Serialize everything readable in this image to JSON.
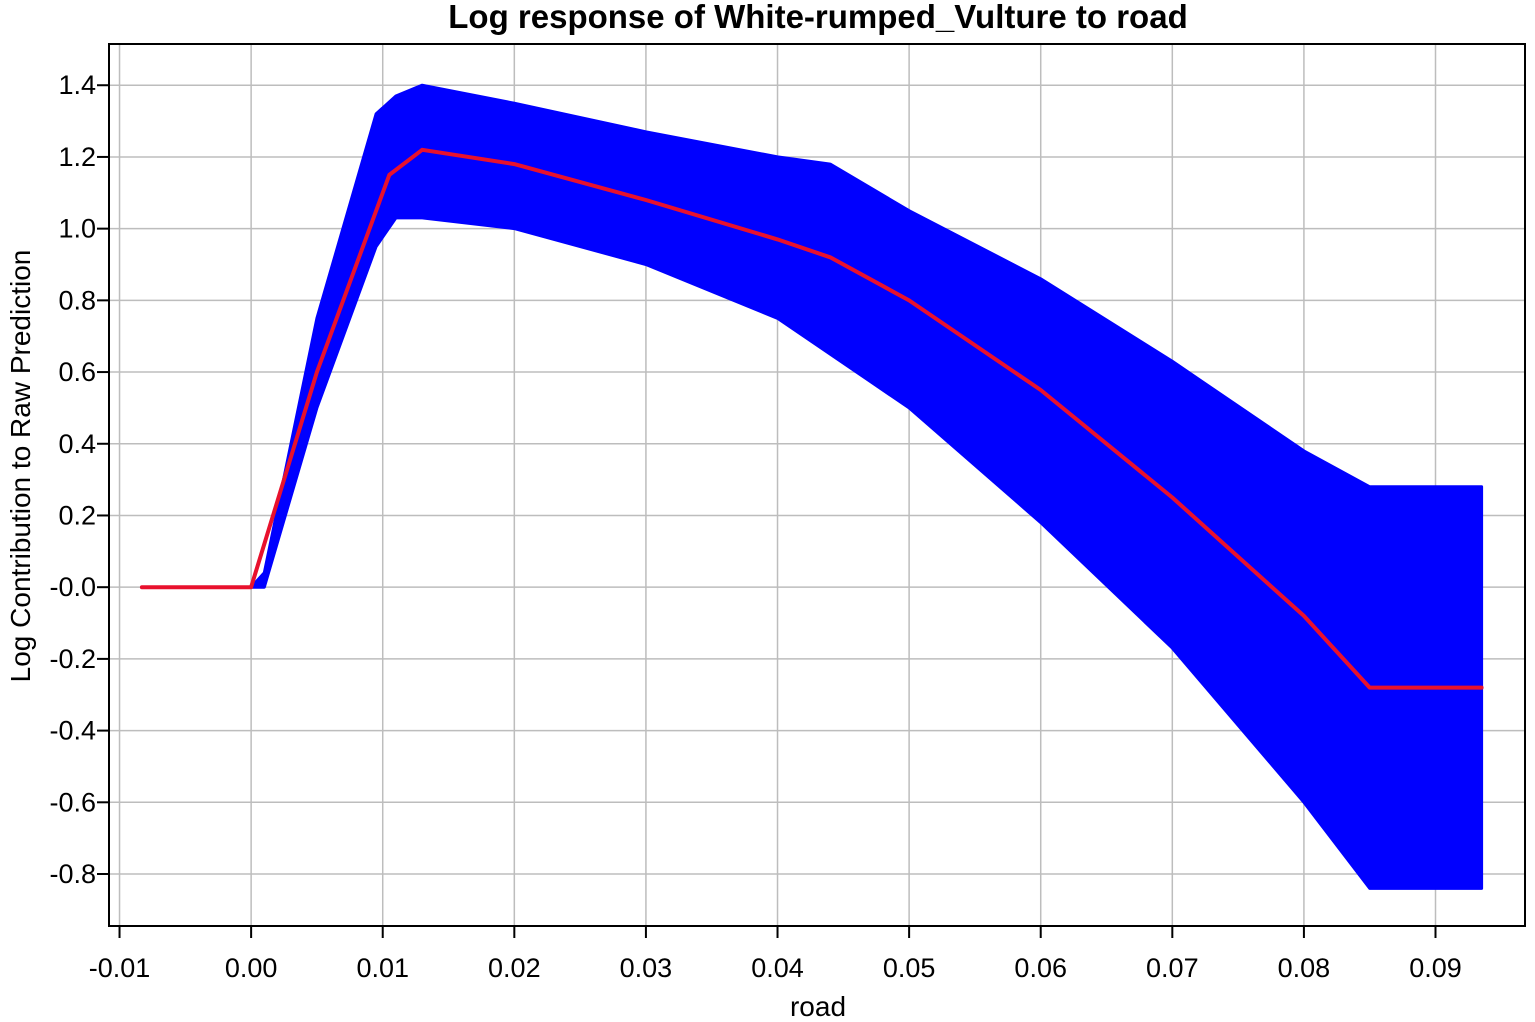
{
  "chart_data": {
    "type": "area",
    "title": "Log response of White-rumped_Vulture to road",
    "xlabel": "road",
    "ylabel": "Log Contribution to Raw Prediction",
    "xlim": [
      -0.0108,
      0.0968
    ],
    "ylim": [
      -0.945,
      1.515
    ],
    "grid": true,
    "legend": "none",
    "x_ticks": [
      "-0.01",
      "0.00",
      "0.01",
      "0.02",
      "0.03",
      "0.04",
      "0.05",
      "0.06",
      "0.07",
      "0.08",
      "0.09"
    ],
    "y_ticks": [
      "1.4",
      "1.2",
      "1.0",
      "0.8",
      "0.6",
      "0.4",
      "0.2",
      "-0.0",
      "-0.2",
      "-0.4",
      "-0.6",
      "-0.8"
    ],
    "band_color": "#0000ff",
    "line_color": "#e8112d",
    "series": [
      {
        "kind": "band",
        "x": [
          0.0,
          0.001,
          0.005,
          0.0095,
          0.011,
          0.013,
          0.02,
          0.03,
          0.04,
          0.044,
          0.05,
          0.06,
          0.07,
          0.08,
          0.085,
          0.0935
        ],
        "lower": [
          0.0,
          0.0,
          0.5,
          0.95,
          1.03,
          1.03,
          1.0,
          0.9,
          0.75,
          0.65,
          0.5,
          0.18,
          -0.17,
          -0.6,
          -0.84,
          -0.84
        ],
        "upper": [
          0.0,
          0.04,
          0.75,
          1.32,
          1.37,
          1.4,
          1.35,
          1.27,
          1.2,
          1.18,
          1.05,
          0.86,
          0.63,
          0.38,
          0.28,
          0.28
        ]
      },
      {
        "kind": "line",
        "x": [
          -0.0083,
          0.0,
          0.005,
          0.0105,
          0.013,
          0.02,
          0.03,
          0.04,
          0.044,
          0.05,
          0.06,
          0.07,
          0.08,
          0.085,
          0.0935
        ],
        "y": [
          0.0,
          0.0,
          0.6,
          1.15,
          1.22,
          1.18,
          1.08,
          0.97,
          0.92,
          0.8,
          0.55,
          0.25,
          -0.08,
          -0.28,
          -0.28
        ]
      }
    ]
  }
}
